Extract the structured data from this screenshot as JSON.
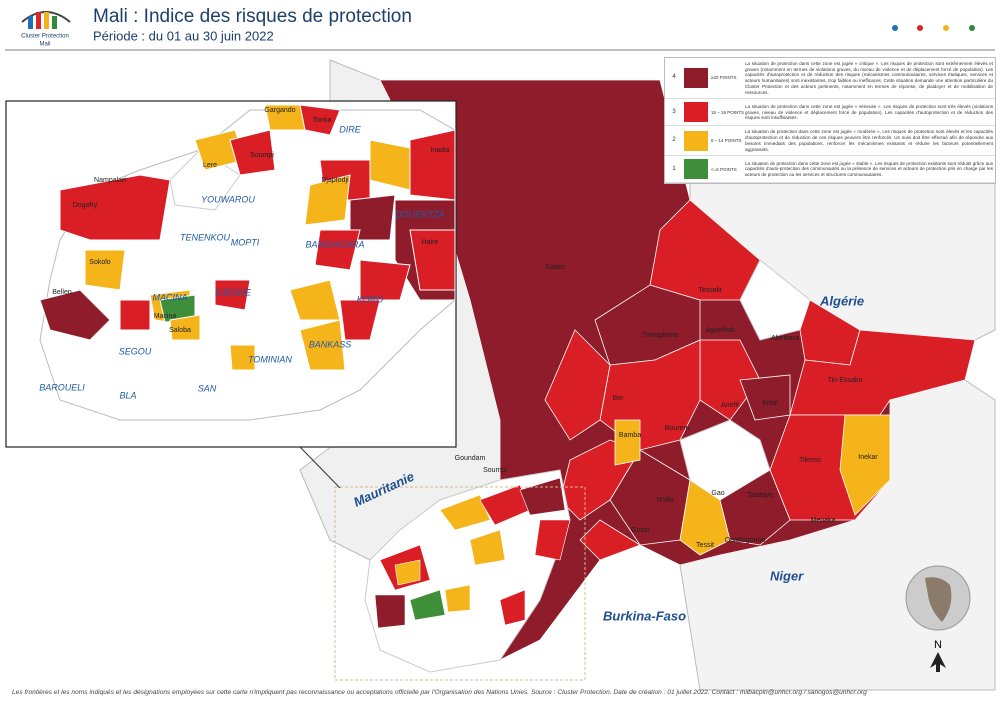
{
  "header": {
    "title": "Mali : Indice des risques de protection",
    "subtitle": "Période : du 01 au 30 juin 2022",
    "logo": {
      "name": "Cluster Protection",
      "country": "Mali"
    }
  },
  "legend": {
    "rows": [
      {
        "level": "4",
        "points": "≥20 POINTS",
        "color": "#8e1c2a",
        "description": "La situation de protection dans cette zone est jugée « critique ». Les risques de protection sont extrêmement élevés et graves (notamment en termes de violations graves, du niveau de violence et de déplacement forcé de population). Les capacités d'autoprotection et de réduction des risques (mécanismes communautaires, services étatiques, services et acteurs humanitaires) sont inexistantes, trop faibles ou inefficaces. Cette situation demande une attention particulière du Cluster Protection et des acteurs pertinents, notamment en termes de réponse, de plaidoyer et de mobilisation de ressources."
      },
      {
        "level": "3",
        "points": "15 – 19 POINTS",
        "color": "#d91e26",
        "description": "La situation de protection dans cette zone est jugée « sérieuse ». Les risques de protection sont très élevés (violations graves, niveau de violence et déplacement forcé de population). Les capacités d'autoprotection et de réduction des risques sont insuffisantes."
      },
      {
        "level": "2",
        "points": "6 – 14 POINTS",
        "color": "#f4b41a",
        "description": "La situation de protection dans cette zone est jugée « modérée ». Les risques de protection sont élevés et les capacités d'autoprotection et de réduction de ces risques peuvent être renforcés. Un suivi doit être effectué afin de répondre aux besoins immédiats des populations, renforcer les mécanismes existants et réduire les facteurs potentiellement aggravants."
      },
      {
        "level": "1",
        "points": "<=5 POINTS",
        "color": "#3f8f3a",
        "description": "La situation de protection dans cette zone est jugée « stable ». Les risques de protection existants sont réduits grâce aux capacités d'auto-protection des communautés ou la présence de services et acteurs de protection pris en charge par les acteurs de protection ou les services et structures communautaires."
      }
    ]
  },
  "map": {
    "countries": [
      "Algérie",
      "Mauritanie",
      "Niger",
      "Burkina-Faso"
    ],
    "regions": [
      "Salam",
      "Tessalit",
      "Abeibara",
      "Tin-Essako",
      "Timtaghene",
      "Aguelhok",
      "Ber",
      "Bourem",
      "Bamba",
      "Anefif",
      "Kidal",
      "Tilemsi",
      "Inekar",
      "Menaka",
      "Gao",
      "Tessit",
      "Talataye",
      "Ouattagouna",
      "N'tillit",
      "Gossi",
      "Soumpi",
      "Goundam"
    ]
  },
  "inset": {
    "regions": [
      "Gargando",
      "Tonka",
      "DIRE",
      "Soumpi",
      "Lere",
      "Nampalari",
      "Dogofry",
      "YOUWAROU",
      "TENENKOU",
      "MOPTI",
      "DJENNE",
      "BANDIAGARA",
      "BANKASS",
      "KORO",
      "DOUENTZA",
      "Haire",
      "Djaptodji",
      "Inadia",
      "Sokolo",
      "Bellen",
      "MACINA",
      "SEGOU",
      "SAN",
      "TOMINIAN",
      "BLA",
      "BAROUELI",
      "Macina",
      "Saloba"
    ]
  },
  "north": "N",
  "footer": "Les frontières et les noms indiqués et les désignations employées sur cette carte n'impliquent pas reconnaissance ou acceptations officielle par l'Organisation des Nations Unies.  Source : Cluster Protection. Date de création : 01 juillet 2022.  Contact : milbacpin@unhcr.org  /  sanogos@unhcr.org"
}
